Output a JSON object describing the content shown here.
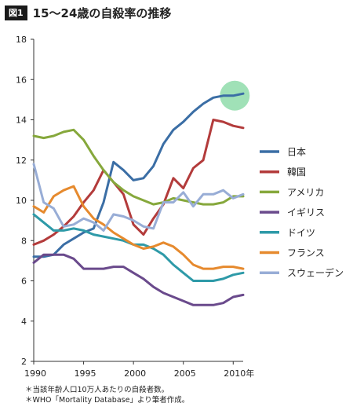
{
  "header": {
    "badge": "図1",
    "title": "15～24歳の自殺率の推移"
  },
  "chart_data": {
    "type": "line",
    "title": "15～24歳の自殺率の推移",
    "xlabel": "",
    "ylabel": "",
    "xlim": [
      1990,
      2011
    ],
    "ylim": [
      2,
      18
    ],
    "grid": false,
    "legend": "right",
    "x_ticks": [
      {
        "value": 1990,
        "label": "1990"
      },
      {
        "value": 1995,
        "label": "1995"
      },
      {
        "value": 2000,
        "label": "2000"
      },
      {
        "value": 2005,
        "label": "2005"
      },
      {
        "value": 2010,
        "label": "2010年"
      }
    ],
    "y_ticks": [
      {
        "value": 2,
        "label": "2"
      },
      {
        "value": 4,
        "label": "4"
      },
      {
        "value": 6,
        "label": "6"
      },
      {
        "value": 8,
        "label": "8"
      },
      {
        "value": 10,
        "label": "10"
      },
      {
        "value": 12,
        "label": "12"
      },
      {
        "value": 14,
        "label": "14"
      },
      {
        "value": 16,
        "label": "16"
      },
      {
        "value": 18,
        "label": "18"
      }
    ],
    "highlight": {
      "x": 2010,
      "y": 15.2,
      "color": "#8fdcaa"
    },
    "series": [
      {
        "name": "日本",
        "color": "#3b6ea5",
        "x": [
          1990,
          1991,
          1992,
          1993,
          1994,
          1995,
          1996,
          1997,
          1998,
          1999,
          2000,
          2001,
          2002,
          2003,
          2004,
          2005,
          2006,
          2007,
          2008,
          2009,
          2010,
          2011
        ],
        "y": [
          7.2,
          7.2,
          7.3,
          7.8,
          8.1,
          8.4,
          8.6,
          9.9,
          11.9,
          11.5,
          11.0,
          11.1,
          11.7,
          12.8,
          13.5,
          13.9,
          14.4,
          14.8,
          15.1,
          15.2,
          15.2,
          15.3
        ]
      },
      {
        "name": "韓国",
        "color": "#b33b3b",
        "x": [
          1990,
          1991,
          1992,
          1993,
          1994,
          1995,
          1996,
          1997,
          1998,
          1999,
          2000,
          2001,
          2002,
          2003,
          2004,
          2005,
          2006,
          2007,
          2008,
          2009,
          2010,
          2011
        ],
        "y": [
          7.8,
          8.0,
          8.3,
          8.7,
          9.2,
          9.9,
          10.5,
          11.5,
          10.9,
          10.3,
          8.8,
          8.3,
          9.1,
          9.8,
          11.1,
          10.6,
          11.6,
          12.0,
          14.0,
          13.9,
          13.7,
          13.6
        ]
      },
      {
        "name": "アメリカ",
        "color": "#86a83c",
        "x": [
          1990,
          1991,
          1992,
          1993,
          1994,
          1995,
          1996,
          1997,
          1998,
          1999,
          2000,
          2001,
          2002,
          2003,
          2004,
          2005,
          2006,
          2007,
          2008,
          2009,
          2010,
          2011
        ],
        "y": [
          13.2,
          13.1,
          13.2,
          13.4,
          13.5,
          13.0,
          12.2,
          11.5,
          10.9,
          10.5,
          10.2,
          10.0,
          9.8,
          9.9,
          10.1,
          10.0,
          9.9,
          9.8,
          9.8,
          9.9,
          10.2,
          10.2
        ]
      },
      {
        "name": "イギリス",
        "color": "#6a4a8c",
        "x": [
          1990,
          1991,
          1992,
          1993,
          1994,
          1995,
          1996,
          1997,
          1998,
          1999,
          2000,
          2001,
          2002,
          2003,
          2004,
          2005,
          2006,
          2007,
          2008,
          2009,
          2010,
          2011
        ],
        "y": [
          6.9,
          7.3,
          7.3,
          7.3,
          7.1,
          6.6,
          6.6,
          6.6,
          6.7,
          6.7,
          6.4,
          6.1,
          5.7,
          5.4,
          5.2,
          5.0,
          4.8,
          4.8,
          4.8,
          4.9,
          5.2,
          5.3
        ]
      },
      {
        "name": "ドイツ",
        "color": "#2e9aa8",
        "x": [
          1990,
          1991,
          1992,
          1993,
          1994,
          1995,
          1996,
          1997,
          1998,
          1999,
          2000,
          2001,
          2002,
          2003,
          2004,
          2005,
          2006,
          2007,
          2008,
          2009,
          2010,
          2011
        ],
        "y": [
          9.3,
          8.9,
          8.5,
          8.5,
          8.6,
          8.5,
          8.3,
          8.2,
          8.1,
          8.0,
          7.8,
          7.8,
          7.6,
          7.3,
          6.8,
          6.4,
          6.0,
          6.0,
          6.0,
          6.1,
          6.3,
          6.4
        ]
      },
      {
        "name": "フランス",
        "color": "#e68a2e",
        "x": [
          1990,
          1991,
          1992,
          1993,
          1994,
          1995,
          1996,
          1997,
          1998,
          1999,
          2000,
          2001,
          2002,
          2003,
          2004,
          2005,
          2006,
          2007,
          2008,
          2009,
          2010,
          2011
        ],
        "y": [
          9.7,
          9.4,
          10.2,
          10.5,
          10.7,
          9.7,
          9.1,
          8.8,
          8.4,
          8.1,
          7.8,
          7.6,
          7.7,
          7.9,
          7.7,
          7.3,
          6.8,
          6.6,
          6.6,
          6.7,
          6.7,
          6.6
        ]
      },
      {
        "name": "スウェーデン",
        "color": "#98add6",
        "x": [
          1990,
          1991,
          1992,
          1993,
          1994,
          1995,
          1996,
          1997,
          1998,
          1999,
          2000,
          2001,
          2002,
          2003,
          2004,
          2005,
          2006,
          2007,
          2008,
          2009,
          2010,
          2011
        ],
        "y": [
          11.8,
          9.9,
          9.6,
          8.7,
          8.8,
          9.1,
          8.9,
          8.5,
          9.3,
          9.2,
          9.0,
          8.7,
          8.6,
          9.9,
          9.9,
          10.4,
          9.7,
          10.3,
          10.3,
          10.5,
          10.1,
          10.3
        ]
      }
    ]
  },
  "footnotes": [
    "＊当該年齢人口10万人あたりの自殺者数。",
    "＊WHO「Mortality Database」より筆者作成。"
  ]
}
